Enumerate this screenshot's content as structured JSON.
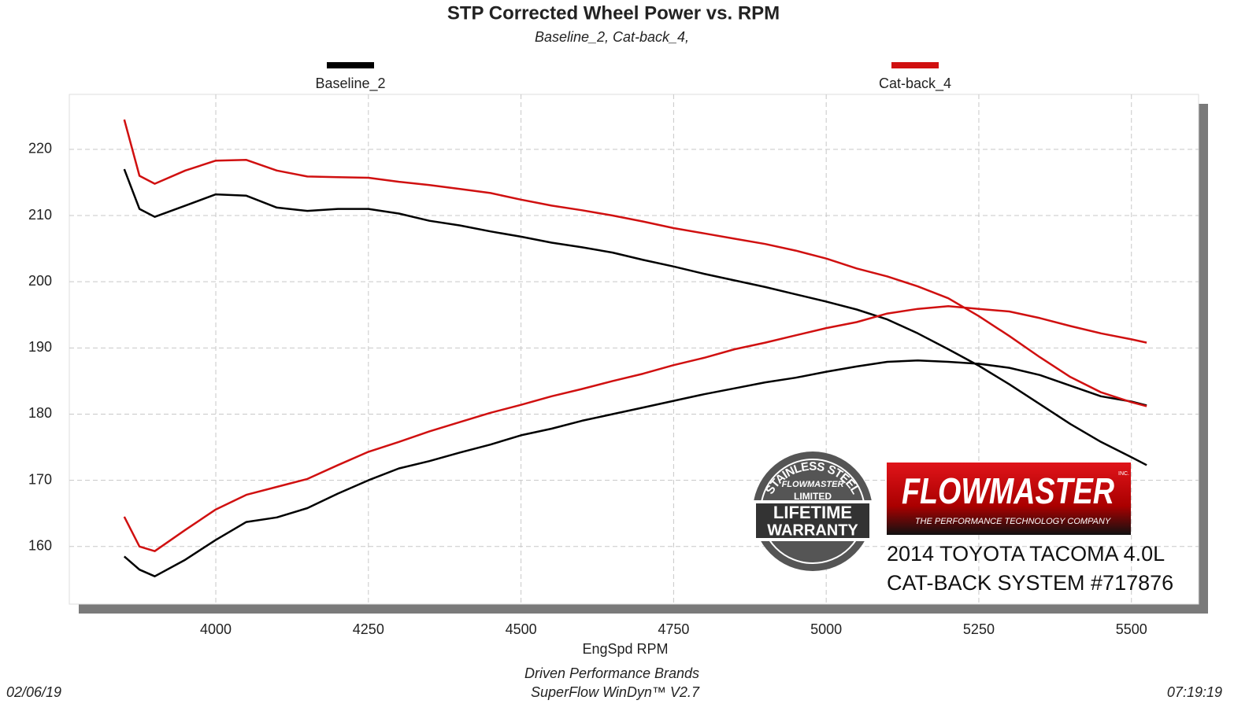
{
  "chart_data": {
    "type": "line",
    "title": "STP Corrected Wheel Power vs. RPM",
    "subtitle": "Baseline_2, Cat-back_4,",
    "x_label": "EngSpd  RPM",
    "x": [
      3850,
      3875,
      3900,
      3950,
      4000,
      4050,
      4100,
      4150,
      4200,
      4250,
      4300,
      4350,
      4400,
      4450,
      4500,
      4550,
      4600,
      4650,
      4700,
      4750,
      4800,
      4850,
      4900,
      4950,
      5000,
      5050,
      5100,
      5150,
      5200,
      5250,
      5300,
      5350,
      5400,
      5450,
      5500,
      5525
    ],
    "series": [
      {
        "name": "Baseline_2",
        "color": "#000000",
        "curves": [
          [
            217,
            211,
            209.8,
            211.5,
            213.2,
            213,
            211.2,
            210.7,
            211,
            211,
            210.3,
            209.2,
            208.5,
            207.6,
            206.8,
            205.9,
            205.2,
            204.4,
            203.3,
            202.3,
            201.2,
            200.2,
            199.2,
            198.1,
            197,
            195.8,
            194.3,
            192.2,
            189.8,
            187.3,
            184.5,
            181.5,
            178.5,
            175.8,
            173.5,
            172.3
          ],
          [
            158.5,
            156.5,
            155.5,
            158,
            161,
            163.7,
            164.4,
            165.8,
            168,
            170,
            171.8,
            172.9,
            174.2,
            175.4,
            176.8,
            177.8,
            179,
            180,
            181,
            182,
            183,
            183.9,
            184.8,
            185.5,
            186.4,
            187.2,
            187.9,
            188.1,
            187.9,
            187.6,
            187,
            185.9,
            184.3,
            182.7,
            181.9,
            181.3
          ]
        ]
      },
      {
        "name": "Cat-back_4",
        "color": "#d01010",
        "curves": [
          [
            224.5,
            216,
            214.8,
            216.8,
            218.3,
            218.4,
            216.8,
            215.9,
            215.8,
            215.7,
            215.1,
            214.6,
            214,
            213.4,
            212.4,
            211.5,
            210.8,
            210,
            209.1,
            208.1,
            207.3,
            206.5,
            205.7,
            204.7,
            203.5,
            202,
            200.8,
            199.3,
            197.5,
            194.8,
            191.8,
            188.6,
            185.6,
            183.3,
            181.8,
            181.2
          ],
          [
            164.5,
            160,
            159.3,
            162.5,
            165.6,
            167.8,
            169,
            170.2,
            172.3,
            174.3,
            175.8,
            177.4,
            178.8,
            180.2,
            181.4,
            182.7,
            183.8,
            185,
            186.1,
            187.4,
            188.5,
            189.8,
            190.8,
            191.9,
            193,
            193.9,
            195.2,
            195.9,
            196.3,
            195.9,
            195.5,
            194.5,
            193.3,
            192.2,
            191.3,
            190.8
          ]
        ]
      }
    ],
    "xlim": [
      3760,
      5610
    ],
    "ylim": [
      151.3,
      228.3
    ],
    "xticks": [
      4000,
      4250,
      4500,
      4750,
      5000,
      5250,
      5500
    ],
    "yticks": [
      160,
      170,
      180,
      190,
      200,
      210,
      220
    ],
    "grid": true,
    "badge": {
      "arc": "STAINLESS STEEL",
      "brand": "FLOWMASTER",
      "line1": "LIMITED",
      "line2": "LIFETIME",
      "line3": "WARRANTY"
    },
    "logo": {
      "brand": "FLOWMASTER",
      "mark": "INC.",
      "tagline": "THE PERFORMANCE TECHNOLOGY COMPANY"
    },
    "caption": [
      "2014 TOYOTA TACOMA 4.0L",
      "CAT-BACK SYSTEM #717876"
    ],
    "footer": [
      "Driven Performance Brands",
      "SuperFlow WinDyn™  V2.7"
    ],
    "date": "02/06/19",
    "time": "07:19:19"
  }
}
